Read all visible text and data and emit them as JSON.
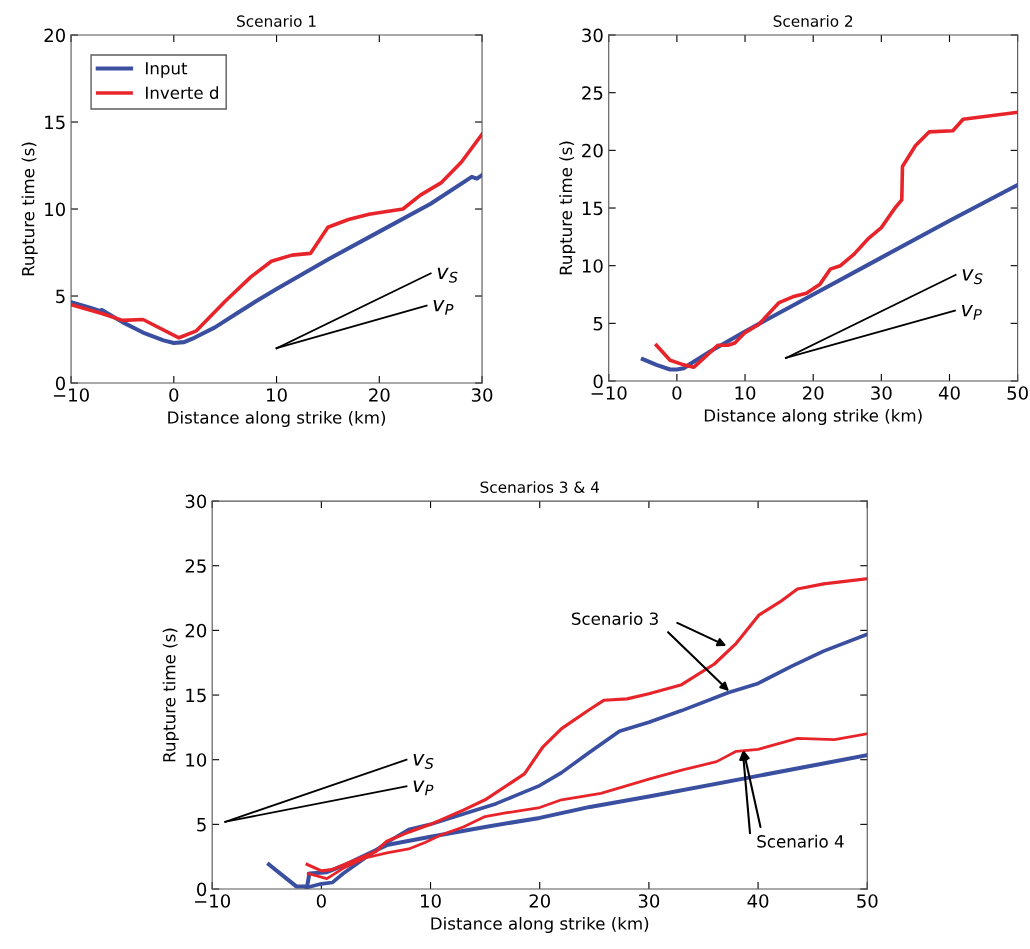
{
  "chart_data": [
    {
      "type": "line",
      "title": "Scenario 1",
      "xlabel": "Distance along strike (km)",
      "ylabel": "Rupture time (s)",
      "xlim": [
        -10,
        30
      ],
      "ylim": [
        0,
        20
      ],
      "xticks": [
        -10,
        0,
        10,
        20,
        30
      ],
      "yticks": [
        0,
        5,
        10,
        15,
        20
      ],
      "legend": "top left",
      "series": [
        {
          "name": "Input",
          "color": "#3a4fa0",
          "x": [
            -10,
            -8,
            -7.2,
            -7,
            -5,
            -3,
            -1,
            0,
            1,
            2,
            4,
            6,
            8,
            10,
            15,
            20,
            25,
            29,
            29.5,
            30
          ],
          "values": [
            4.65,
            4.3,
            4.15,
            4.2,
            3.5,
            2.9,
            2.45,
            2.3,
            2.35,
            2.6,
            3.2,
            3.95,
            4.7,
            5.4,
            7.1,
            8.7,
            10.3,
            11.85,
            11.75,
            11.95
          ]
        },
        {
          "name": "Inverte d",
          "color": "#e8242b",
          "x": [
            -10,
            -7,
            -5,
            -3,
            0.5,
            2.2,
            5,
            7.5,
            9.5,
            11.5,
            13.3,
            15,
            17,
            19,
            22.3,
            24,
            26,
            28,
            30
          ],
          "values": [
            4.5,
            4.0,
            3.6,
            3.65,
            2.6,
            3.0,
            4.7,
            6.1,
            7.0,
            7.35,
            7.45,
            8.95,
            9.4,
            9.7,
            10.0,
            10.8,
            11.5,
            12.7,
            14.3
          ]
        },
        {
          "color": "#000000",
          "x": [
            10,
            25
          ],
          "values": [
            2.0,
            6.3
          ]
        },
        {
          "color": "#000000",
          "x": [
            10,
            24.6
          ],
          "values": [
            2.0,
            4.45
          ]
        }
      ],
      "annotations": [
        {
          "text": "v$_{S}$",
          "x": 25,
          "y": 6.3
        },
        {
          "text": "v$_{P}$",
          "x": 24.6,
          "y": 4.45
        }
      ]
    },
    {
      "type": "line",
      "title": "Scenario 2",
      "xlabel": "Distance along strike (km)",
      "ylabel": "Rupture time (s)",
      "xlim": [
        -10,
        50
      ],
      "ylim": [
        0,
        30
      ],
      "xticks": [
        -10,
        0,
        10,
        20,
        30,
        40,
        50
      ],
      "yticks": [
        0,
        5,
        10,
        15,
        20,
        25,
        30
      ],
      "series": [
        {
          "color": "#3a4fa0",
          "x": [
            -5,
            -3,
            -1,
            0,
            1,
            2,
            5,
            10,
            20,
            30,
            40,
            50
          ],
          "values": [
            1.9,
            1.4,
            1.0,
            1.0,
            1.1,
            1.5,
            2.6,
            4.3,
            7.5,
            10.7,
            13.9,
            17.0
          ]
        },
        {
          "color": "#e8242b",
          "x": [
            -3,
            -1,
            1,
            2.5,
            4,
            6,
            7.5,
            8.5,
            10,
            12,
            15,
            17,
            19,
            21,
            22.5,
            24,
            26,
            28,
            30,
            32,
            33,
            33.1,
            35,
            37,
            40.5,
            42,
            50
          ],
          "values": [
            3.1,
            1.8,
            1.4,
            1.2,
            2.0,
            3.1,
            3.1,
            3.3,
            4.2,
            4.9,
            6.8,
            7.3,
            7.6,
            8.4,
            9.7,
            10.0,
            11.0,
            12.3,
            13.3,
            15.0,
            15.7,
            18.6,
            20.4,
            21.6,
            21.7,
            22.7,
            23.3
          ]
        },
        {
          "color": "#000000",
          "x": [
            16,
            40.9
          ],
          "values": [
            2.0,
            9.2
          ]
        },
        {
          "color": "#000000",
          "x": [
            16,
            40.8
          ],
          "values": [
            2.0,
            6.1
          ]
        }
      ],
      "annotations": [
        {
          "text": "v$_{S}$",
          "x": 40.9,
          "y": 9.2
        },
        {
          "text": "v$_{P}$",
          "x": 40.8,
          "y": 6.1
        }
      ]
    },
    {
      "type": "line",
      "title": "Scenarios 3 & 4",
      "xlabel": "Distance along strike (km)",
      "ylabel": "Rupture time (s)",
      "xlim": [
        -10,
        50
      ],
      "ylim": [
        0,
        30
      ],
      "xticks": [
        -10,
        0,
        10,
        20,
        30,
        40,
        50
      ],
      "yticks": [
        0,
        5,
        10,
        15,
        20,
        25,
        30
      ],
      "series": [
        {
          "color": "#3a4fa0",
          "x": [
            -4.8,
            -2.3,
            -1.3,
            -1.1,
            0.5,
            2,
            4,
            6,
            10,
            15,
            20,
            24.6,
            30,
            40,
            50
          ],
          "values": [
            1.9,
            0.2,
            0.2,
            1.2,
            1.3,
            1.8,
            2.6,
            3.4,
            4.05,
            4.8,
            5.5,
            6.35,
            7.15,
            8.75,
            10.35
          ]
        },
        {
          "color": "#3a4fa0",
          "x": [
            -1.4,
            0,
            1,
            2,
            4,
            6,
            8,
            10,
            13,
            16,
            18,
            20,
            22,
            24.6,
            27.3,
            30,
            33,
            37.3,
            40,
            43,
            46,
            50
          ],
          "values": [
            0.1,
            0.4,
            0.5,
            1.2,
            2.4,
            3.6,
            4.6,
            5.0,
            5.8,
            6.6,
            7.3,
            8.0,
            9.0,
            10.6,
            12.2,
            12.9,
            13.8,
            15.2,
            15.9,
            17.2,
            18.4,
            19.7
          ]
        },
        {
          "color": "#e8242b",
          "x": [
            -1.3,
            0,
            1,
            3,
            5,
            6,
            8,
            10,
            13,
            15,
            18.6,
            20.3,
            22,
            24.6,
            25.9,
            28,
            30,
            33,
            36,
            38,
            40.1,
            42,
            43.6,
            46,
            50
          ],
          "values": [
            1.9,
            1.4,
            1.5,
            2.2,
            2.9,
            3.7,
            4.4,
            5.0,
            6.1,
            6.9,
            8.9,
            11.0,
            12.4,
            13.9,
            14.6,
            14.7,
            15.1,
            15.8,
            17.4,
            19.0,
            21.2,
            22.2,
            23.2,
            23.6,
            24.0
          ]
        },
        {
          "color": "#e8242b",
          "x": [
            -1.2,
            0.5,
            2,
            4,
            6,
            8,
            9.5,
            11,
            13,
            15,
            17,
            20,
            22,
            25.6,
            28,
            30,
            33,
            36.2,
            38,
            40,
            43.6,
            47,
            50
          ],
          "values": [
            1.2,
            0.8,
            1.6,
            2.4,
            2.8,
            3.1,
            3.6,
            4.2,
            4.8,
            5.6,
            5.9,
            6.3,
            6.9,
            7.4,
            8.0,
            8.5,
            9.2,
            9.85,
            10.65,
            10.8,
            11.65,
            11.55,
            12.0
          ]
        },
        {
          "color": "#000000",
          "x": [
            -8.8,
            7.8
          ],
          "values": [
            5.2,
            10.0
          ]
        },
        {
          "color": "#000000",
          "x": [
            -8.8,
            7.8
          ],
          "values": [
            5.2,
            7.95
          ]
        }
      ],
      "annotations": [
        {
          "text": "v$_{S}$",
          "x": 7.8,
          "y": 10.0
        },
        {
          "text": "v$_{P}$",
          "x": 7.8,
          "y": 7.95
        },
        {
          "text": "Scenario 3",
          "x": 37.1,
          "y": 18.8
        },
        {
          "text": "Scenario 4",
          "x": 38.6,
          "y": 10.7
        }
      ]
    }
  ]
}
